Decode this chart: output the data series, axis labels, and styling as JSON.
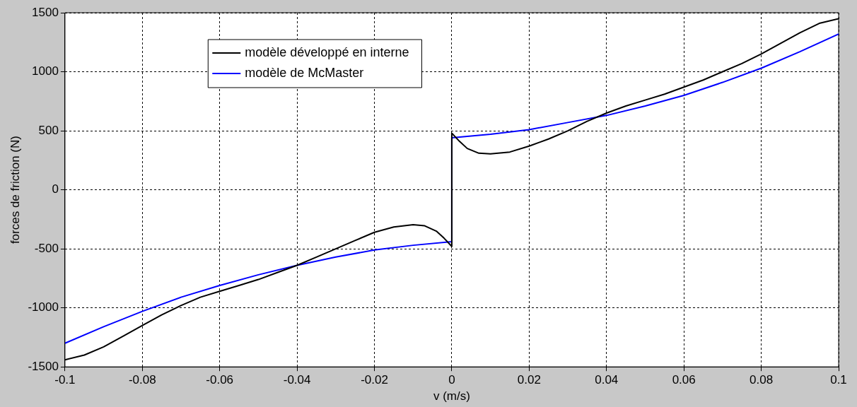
{
  "chart_data": {
    "type": "line",
    "xlabel": "v (m/s)",
    "ylabel": "forces de friction (N)",
    "xlim": [
      -0.1,
      0.1
    ],
    "xticks": [
      -0.1,
      -0.08,
      -0.06,
      -0.04,
      -0.02,
      0,
      0.02,
      0.04,
      0.06,
      0.08,
      0.1
    ],
    "ylim": [
      -1500,
      1500
    ],
    "yticks": [
      -1500,
      -1000,
      -500,
      0,
      500,
      1000,
      1500
    ],
    "grid": true,
    "legend": "top left",
    "marker": "none",
    "line_style": "solid",
    "series": [
      {
        "name": "modèle développé en interne",
        "color": "#000000",
        "x": [
          -0.1,
          -0.095,
          -0.09,
          -0.085,
          -0.08,
          -0.075,
          -0.07,
          -0.065,
          -0.06,
          -0.055,
          -0.05,
          -0.045,
          -0.04,
          -0.035,
          -0.03,
          -0.025,
          -0.02,
          -0.015,
          -0.01,
          -0.007,
          -0.004,
          -0.002,
          0,
          0,
          0.002,
          0.004,
          0.007,
          0.01,
          0.015,
          0.02,
          0.025,
          0.03,
          0.035,
          0.04,
          0.045,
          0.05,
          0.055,
          0.06,
          0.065,
          0.07,
          0.075,
          0.08,
          0.085,
          0.09,
          0.095,
          0.1
        ],
        "values": [
          -1440,
          -1400,
          -1330,
          -1240,
          -1150,
          -1060,
          -980,
          -910,
          -860,
          -810,
          -760,
          -700,
          -640,
          -570,
          -500,
          -430,
          -360,
          -315,
          -295,
          -305,
          -350,
          -410,
          -480,
          480,
          410,
          350,
          310,
          305,
          320,
          370,
          430,
          500,
          580,
          650,
          710,
          760,
          810,
          870,
          930,
          1000,
          1070,
          1150,
          1240,
          1330,
          1410,
          1450
        ]
      },
      {
        "name": "modèle de McMaster",
        "color": "#0000ff",
        "x": [
          -0.1,
          -0.09,
          -0.08,
          -0.07,
          -0.06,
          -0.05,
          -0.04,
          -0.03,
          -0.02,
          -0.01,
          0,
          0,
          0.01,
          0.02,
          0.03,
          0.04,
          0.05,
          0.06,
          0.07,
          0.08,
          0.09,
          0.1
        ],
        "values": [
          -1300,
          -1160,
          -1030,
          -910,
          -810,
          -720,
          -640,
          -570,
          -510,
          -470,
          -440,
          440,
          470,
          510,
          570,
          630,
          710,
          800,
          910,
          1030,
          1170,
          1320
        ]
      }
    ]
  }
}
